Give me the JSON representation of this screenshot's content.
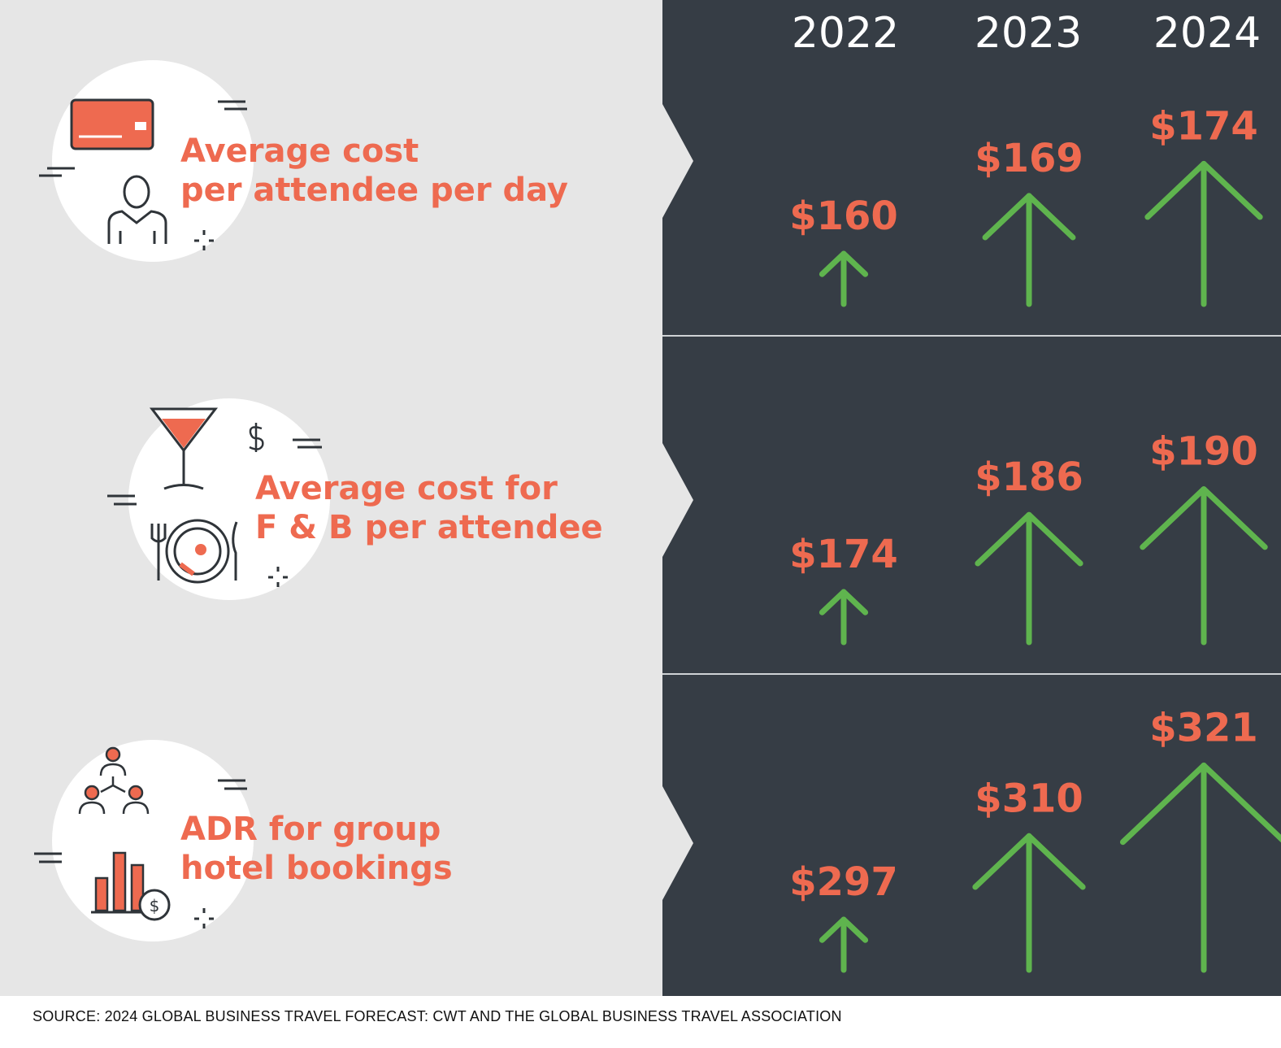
{
  "chart_data": {
    "type": "bar",
    "categories": [
      "2022",
      "2023",
      "2024"
    ],
    "series": [
      {
        "name": "Average cost per attendee per day",
        "label_lines": [
          "Average cost",
          "per attendee per day"
        ],
        "icon": "credit-card-attendee-icon",
        "values": [
          160,
          169,
          174
        ],
        "value_labels": [
          "$160",
          "$169",
          "$174"
        ]
      },
      {
        "name": "Average cost for F & B per attendee",
        "label_lines": [
          "Average cost for",
          "F & B per attendee"
        ],
        "icon": "food-beverage-icon",
        "values": [
          174,
          186,
          190
        ],
        "value_labels": [
          "$174",
          "$186",
          "$190"
        ]
      },
      {
        "name": "ADR for group hotel bookings",
        "label_lines": [
          "ADR for group",
          "hotel bookings"
        ],
        "icon": "group-hotel-booking-icon",
        "values": [
          297,
          310,
          321
        ],
        "value_labels": [
          "$297",
          "$310",
          "$321"
        ]
      }
    ],
    "source": "SOURCE: 2024 GLOBAL BUSINESS TRAVEL FORECAST: CWT AND THE GLOBAL BUSINESS TRAVEL ASSOCIATION"
  },
  "colors": {
    "left_background": "#e6e6e6",
    "panel_background": "#363d45",
    "accent_orange": "#ee6a50",
    "arrow_green": "#5fb44e",
    "year_text": "#ffffff",
    "divider": "#cfd2d5"
  }
}
